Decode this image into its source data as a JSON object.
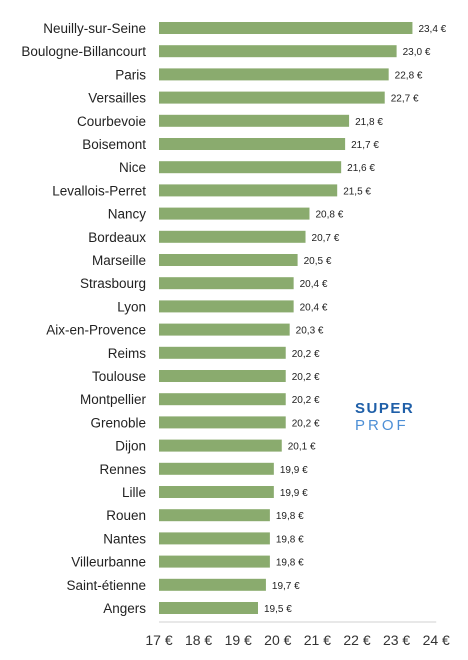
{
  "chart_data": {
    "type": "bar",
    "orientation": "horizontal",
    "categories": [
      "Neuilly-sur-Seine",
      "Boulogne-Billancourt",
      "Paris",
      "Versailles",
      "Courbevoie",
      "Boisemont",
      "Nice",
      "Levallois-Perret",
      "Nancy",
      "Bordeaux",
      "Marseille",
      "Strasbourg",
      "Lyon",
      "Aix-en-Provence",
      "Reims",
      "Toulouse",
      "Montpellier",
      "Grenoble",
      "Dijon",
      "Rennes",
      "Lille",
      "Rouen",
      "Nantes",
      "Villeurbanne",
      "Saint-étienne",
      "Angers"
    ],
    "values": [
      23.4,
      23.0,
      22.8,
      22.7,
      21.8,
      21.7,
      21.6,
      21.5,
      20.8,
      20.7,
      20.5,
      20.4,
      20.4,
      20.3,
      20.2,
      20.2,
      20.2,
      20.2,
      20.1,
      19.9,
      19.9,
      19.8,
      19.8,
      19.8,
      19.7,
      19.5
    ],
    "value_labels": [
      "23,4 €",
      "23,0 €",
      "22,8 €",
      "22,7 €",
      "21,8 €",
      "21,7 €",
      "21,6 €",
      "21,5 €",
      "20,8 €",
      "20,7 €",
      "20,5 €",
      "20,4 €",
      "20,4 €",
      "20,3 €",
      "20,2 €",
      "20,2 €",
      "20,2 €",
      "20,2 €",
      "20,1 €",
      "19,9 €",
      "19,9 €",
      "19,8 €",
      "19,8 €",
      "19,8 €",
      "19,7 €",
      "19,5 €"
    ],
    "xlim": [
      17,
      24
    ],
    "xticks": [
      "17 €",
      "18 €",
      "19 €",
      "20 €",
      "21 €",
      "22 €",
      "23 €",
      "24 €"
    ],
    "title": "",
    "xlabel": "",
    "ylabel": "",
    "grid": false,
    "legend": "none",
    "bar_color": "#8aab6e"
  },
  "watermark": {
    "line1": "SUPER",
    "line2": "PROF",
    "color1": "#1f5fa8",
    "color2": "#4d8fd6"
  }
}
